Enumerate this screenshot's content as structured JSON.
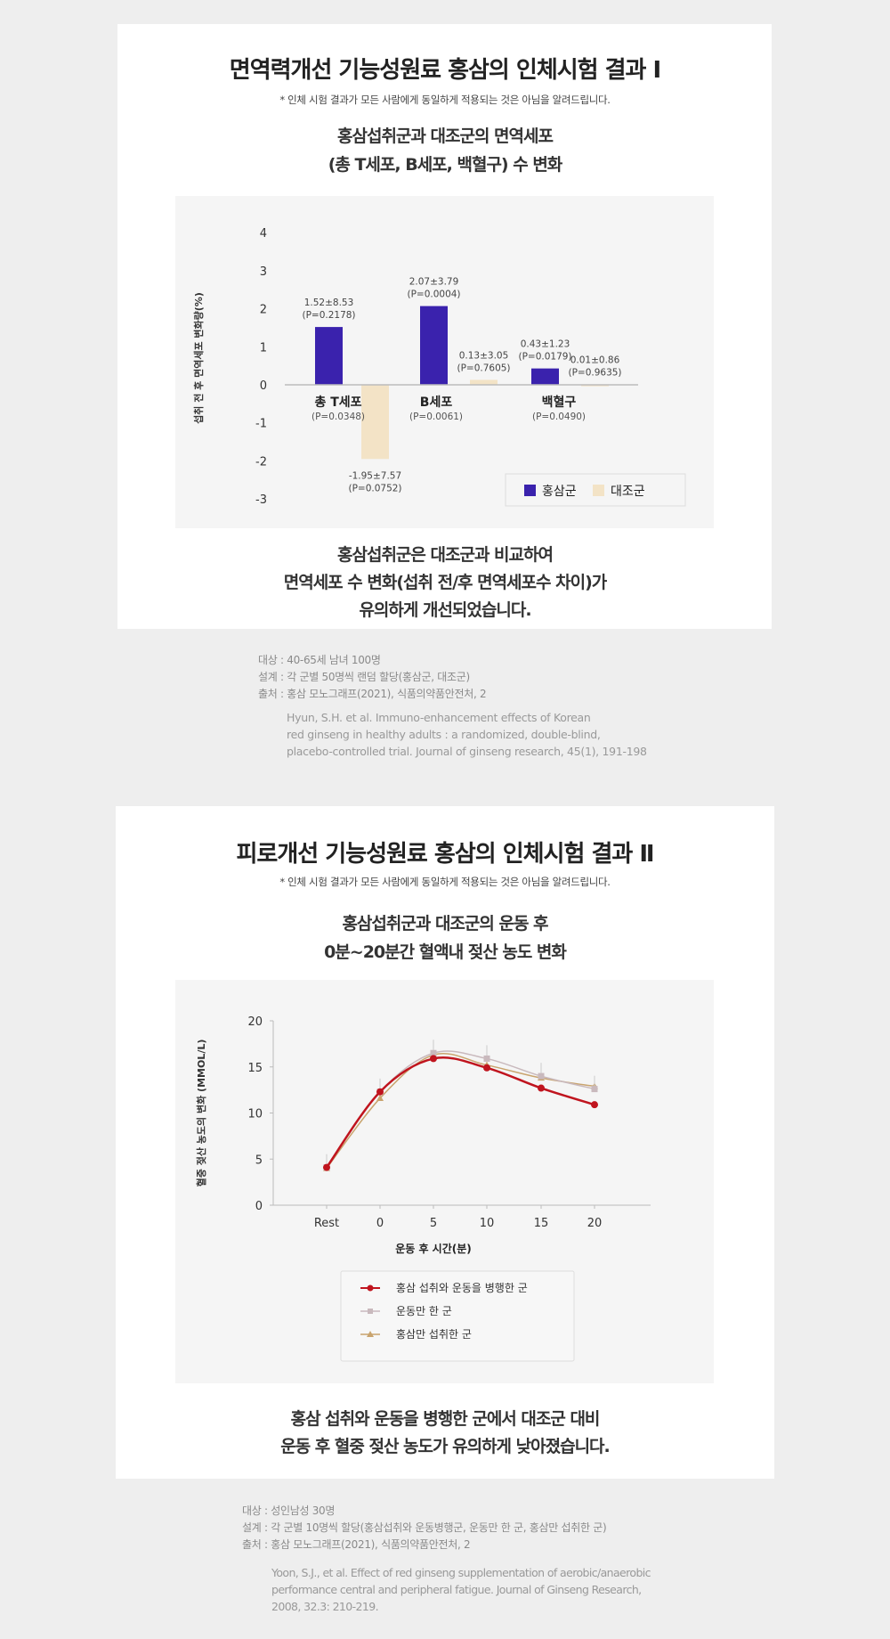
{
  "section1": {
    "title": "면역력개선 기능성원료 홍삼의 인체시험 결과 Ⅰ",
    "note": "* 인체 시험 결과가 모든 사람에게 동일하게 적용되는 것은 아님을 알려드립니다.",
    "subtitle": [
      "홍삼섭취군과 대조군의 면역세포",
      "(총 T세포, B세포, 백혈구) 수 변화"
    ],
    "summary": [
      "홍삼섭취군은 대조군과 비교하여",
      "면역세포 수 변화(섭취 전/후 면역세포수 차이)가",
      "유의하게 개선되었습니다."
    ],
    "refs": [
      "대상 : 40-65세 남녀 100명",
      "설계 : 각 군별 50명씩 랜덤 할당(홍삼군, 대조군)",
      "출처 : 홍삼 모노그래프(2021), 식품의약품안전처, 2"
    ],
    "citation": [
      "Hyun, S.H. et al. Immuno-enhancement effects of Korean",
      "red ginseng in healthy adults :  a randomized, double-blind,",
      "placebo-controlled trial. Journal of ginseng research, 45(1), 191-198"
    ]
  },
  "section2": {
    "title": "피로개선 기능성원료 홍삼의 인체시험 결과 Ⅱ",
    "note": "* 인체 시험 결과가 모든 사람에게 동일하게 적용되는 것은 아님을 알려드립니다.",
    "subtitle": [
      "홍삼섭취군과 대조군의 운동 후",
      "0분~20분간 혈액내 젖산 농도 변화"
    ],
    "summary": [
      "홍삼 섭취와 운동을 병행한 군에서 대조군 대비",
      "운동 후 혈중 젖산 농도가 유의하게 낮아졌습니다."
    ],
    "refs": [
      "대상 : 성인남성 30명",
      "설계 : 각 군별 10명씩 할당(홍삼섭취와 운동병행군, 운동만 한 군, 홍삼만 섭취한 군)",
      "출처 : 홍삼 모노그래프(2021), 식품의약품안전처, 2"
    ],
    "citation": [
      "Yoon, S.J., et al. Effect of red ginseng supplementation of aerobic/anaerobic",
      "performance central and peripheral fatigue. Journal of Ginseng Research,",
      "2008, 32.3: 210-219."
    ]
  },
  "chart_data": [
    {
      "type": "bar",
      "ylabel": "섭취 전 후 면역세포 변화량(%)",
      "ylim": [
        -3,
        4
      ],
      "yticks": [
        "4",
        "3",
        "2",
        "1",
        "0",
        "-1",
        "-2",
        "-3"
      ],
      "categories": [
        "총 T세포",
        "B세포",
        "백혈구"
      ],
      "category_p": [
        "(P=0.0348)",
        "(P=0.0061)",
        "(P=0.0490)"
      ],
      "series": [
        {
          "name": "홍삼군",
          "color": "#3a22ad",
          "values": [
            1.52,
            2.07,
            0.43
          ],
          "labels": [
            "1.52±8.53",
            "2.07±3.79",
            "0.43±1.23"
          ],
          "p": [
            "(P=0.2178)",
            "(P=0.0004)",
            "(P=0.0179)"
          ]
        },
        {
          "name": "대조군",
          "color": "#f3e3c6",
          "values": [
            -1.95,
            0.13,
            0.01
          ],
          "labels": [
            "-1.95±7.57",
            "0.13±3.05",
            "0.01±0.86"
          ],
          "p": [
            "(P=0.0752)",
            "(P=0.7605)",
            "(P=0.9635)"
          ]
        }
      ],
      "legend": "bottom-right"
    },
    {
      "type": "line",
      "xlabel": "운동 후 시간(분)",
      "ylabel": "혈중 젖산 농도의 변화 (MMOL/L)",
      "ylim": [
        0,
        20
      ],
      "yticks": [
        "0",
        "5",
        "10",
        "15",
        "20"
      ],
      "categories": [
        "Rest",
        "0",
        "5",
        "10",
        "15",
        "20"
      ],
      "series": [
        {
          "name": "홍삼 섭취와 운동을 병행한 군",
          "color": "#c0141e",
          "marker": "circle",
          "values": [
            4.1,
            12.3,
            15.9,
            14.9,
            12.7,
            10.9
          ]
        },
        {
          "name": "운동만 한 군",
          "color": "#c9b9bd",
          "marker": "square",
          "values": [
            4.1,
            12.3,
            16.5,
            15.9,
            14.0,
            12.6
          ]
        },
        {
          "name": "홍삼만 섭취한 군",
          "color": "#c9a46e",
          "marker": "triangle",
          "values": [
            4.0,
            11.6,
            16.3,
            15.2,
            13.8,
            12.9
          ]
        }
      ],
      "legend": "bottom-center"
    }
  ]
}
